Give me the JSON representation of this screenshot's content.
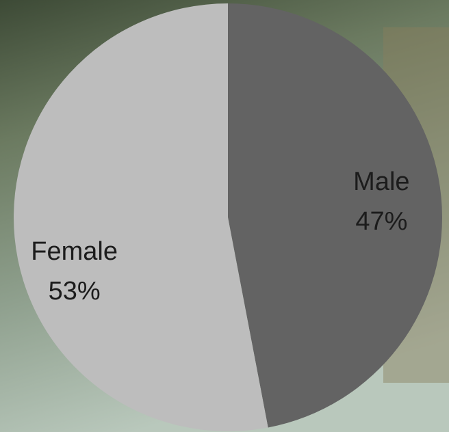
{
  "chart_data": {
    "type": "pie",
    "categories": [
      "Male",
      "Female"
    ],
    "values": [
      47,
      53
    ],
    "value_labels": [
      "47%",
      "53%"
    ],
    "colors": [
      "#636363",
      "#bdbdbd"
    ]
  }
}
